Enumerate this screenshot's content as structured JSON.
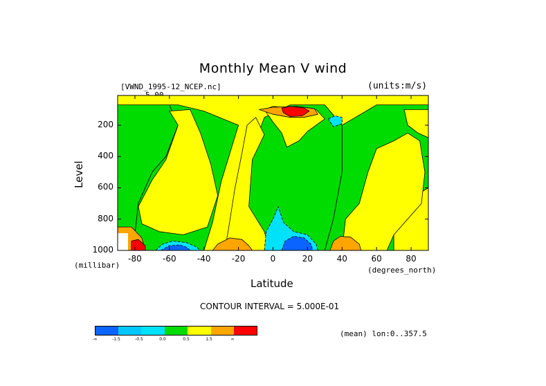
{
  "chart_data": {
    "type": "heatmap",
    "title": "Monthly Mean V wind",
    "dataset_label": "[VWND_1995-12_NCEP.nc]",
    "units_label": "(units:m/s)",
    "xlabel": "Latitude",
    "x_unit_label": "(degrees_north)",
    "ylabel": "Level",
    "y_unit_label": "(millibar)",
    "xlim": [
      -90,
      90
    ],
    "ylim": [
      1000,
      10
    ],
    "x_ticks": [
      -80,
      -60,
      -40,
      -20,
      0,
      20,
      40,
      60,
      80
    ],
    "y_ticks": [
      200,
      400,
      600,
      800,
      1000
    ],
    "contour_interval_text": "CONTOUR INTERVAL = 5.000E-01",
    "top_label": "5.00",
    "footnote": "(mean) lon:0..357.5",
    "colorbar": {
      "colors": [
        "#0a64ff",
        "#00c8ff",
        "#00e1fa",
        "#00dc00",
        "#ffff00",
        "#ffa500",
        "#ff0000"
      ],
      "labels": [
        "-∞",
        "-1.5",
        "-0.5",
        "0.0",
        "0.5",
        "1.5",
        "∞"
      ]
    },
    "regions": [
      {
        "name": "green-west-band",
        "level": 0.0,
        "points": [
          [
            -90,
            1000
          ],
          [
            -90,
            70
          ],
          [
            -60,
            70
          ],
          [
            -55,
            200
          ],
          [
            -62,
            400
          ],
          [
            -70,
            500
          ],
          [
            -78,
            700
          ],
          [
            -80,
            900
          ],
          [
            -80,
            1000
          ]
        ]
      },
      {
        "name": "green-central",
        "level": 0.0,
        "points": [
          [
            -40,
            1000
          ],
          [
            -35,
            820
          ],
          [
            -30,
            560
          ],
          [
            -25,
            380
          ],
          [
            -20,
            200
          ],
          [
            -40,
            110
          ],
          [
            -55,
            70
          ],
          [
            -60,
            70
          ],
          [
            -55,
            200
          ],
          [
            -62,
            400
          ],
          [
            -70,
            500
          ],
          [
            -78,
            700
          ],
          [
            -80,
            900
          ],
          [
            -80,
            1000
          ]
        ]
      },
      {
        "name": "green-tropics",
        "level": 0.0,
        "points": [
          [
            -20,
            1000
          ],
          [
            -15,
            600
          ],
          [
            -10,
            300
          ],
          [
            -5,
            150
          ],
          [
            10,
            70
          ],
          [
            30,
            70
          ],
          [
            40,
            200
          ],
          [
            40,
            500
          ],
          [
            35,
            800
          ],
          [
            30,
            1000
          ]
        ]
      },
      {
        "name": "green-north",
        "level": 0.0,
        "points": [
          [
            30,
            1000
          ],
          [
            35,
            800
          ],
          [
            40,
            500
          ],
          [
            40,
            200
          ],
          [
            60,
            70
          ],
          [
            90,
            70
          ],
          [
            90,
            600
          ],
          [
            75,
            700
          ],
          [
            70,
            900
          ],
          [
            70,
            1000
          ]
        ]
      },
      {
        "name": "yellow-west",
        "level": 0.5,
        "points": [
          [
            -78,
            720
          ],
          [
            -70,
            550
          ],
          [
            -62,
            420
          ],
          [
            -55,
            200
          ],
          [
            -60,
            110
          ],
          [
            -48,
            100
          ],
          [
            -42,
            250
          ],
          [
            -36,
            450
          ],
          [
            -32,
            650
          ],
          [
            -38,
            850
          ],
          [
            -52,
            900
          ],
          [
            -66,
            880
          ],
          [
            -76,
            830
          ]
        ]
      },
      {
        "name": "yellow-central",
        "level": 0.5,
        "points": [
          [
            -28,
            1000
          ],
          [
            -26,
            880
          ],
          [
            -22,
            600
          ],
          [
            -18,
            380
          ],
          [
            -15,
            200
          ],
          [
            -10,
            150
          ],
          [
            -5,
            260
          ],
          [
            -12,
            420
          ],
          [
            -14,
            720
          ],
          [
            -5,
            880
          ],
          [
            -2,
            1000
          ]
        ]
      },
      {
        "name": "yellow-north",
        "level": 0.5,
        "points": [
          [
            40,
            1000
          ],
          [
            42,
            800
          ],
          [
            50,
            700
          ],
          [
            55,
            500
          ],
          [
            60,
            350
          ],
          [
            70,
            300
          ],
          [
            78,
            250
          ],
          [
            85,
            300
          ],
          [
            88,
            500
          ],
          [
            86,
            700
          ],
          [
            78,
            800
          ],
          [
            70,
            900
          ],
          [
            66,
            1000
          ]
        ]
      },
      {
        "name": "yellow-top",
        "level": 0.5,
        "points": [
          [
            -5,
            100
          ],
          [
            0,
            80
          ],
          [
            10,
            90
          ],
          [
            25,
            100
          ],
          [
            30,
            160
          ],
          [
            20,
            240
          ],
          [
            15,
            300
          ],
          [
            8,
            340
          ],
          [
            5,
            250
          ],
          [
            0,
            180
          ]
        ]
      },
      {
        "name": "yellow-east-edge",
        "level": 0.5,
        "points": [
          [
            76,
            100
          ],
          [
            90,
            100
          ],
          [
            90,
            280
          ],
          [
            84,
            250
          ],
          [
            78,
            200
          ]
        ]
      },
      {
        "name": "orange-bottom-central",
        "level": 1.5,
        "points": [
          [
            -35,
            1000
          ],
          [
            -32,
            960
          ],
          [
            -25,
            920
          ],
          [
            -18,
            930
          ],
          [
            -14,
            970
          ],
          [
            -12,
            1000
          ]
        ]
      },
      {
        "name": "orange-bottom-north",
        "level": 1.5,
        "points": [
          [
            33,
            1000
          ],
          [
            35,
            940
          ],
          [
            39,
            910
          ],
          [
            45,
            915
          ],
          [
            50,
            960
          ],
          [
            51,
            1000
          ]
        ]
      },
      {
        "name": "orange-top",
        "level": 1.5,
        "points": [
          [
            -8,
            100
          ],
          [
            0,
            85
          ],
          [
            14,
            80
          ],
          [
            24,
            95
          ],
          [
            26,
            130
          ],
          [
            18,
            150
          ],
          [
            10,
            150
          ],
          [
            0,
            130
          ]
        ]
      },
      {
        "name": "orange-west-edge",
        "level": 1.5,
        "points": [
          [
            -90,
            850
          ],
          [
            -82,
            850
          ],
          [
            -76,
            920
          ],
          [
            -74,
            1000
          ],
          [
            -90,
            1000
          ]
        ]
      },
      {
        "name": "red-top",
        "level": 2.0,
        "points": [
          [
            5,
            90
          ],
          [
            10,
            80
          ],
          [
            18,
            90
          ],
          [
            21,
            110
          ],
          [
            17,
            140
          ],
          [
            10,
            145
          ],
          [
            6,
            120
          ]
        ]
      },
      {
        "name": "red-west-bottom",
        "level": 2.0,
        "points": [
          [
            -82,
            940
          ],
          [
            -78,
            930
          ],
          [
            -74,
            970
          ],
          [
            -74,
            1000
          ],
          [
            -82,
            1000
          ]
        ]
      },
      {
        "name": "cyan-tropics",
        "level": -0.5,
        "points": [
          [
            -5,
            1000
          ],
          [
            -4,
            880
          ],
          [
            0,
            800
          ],
          [
            3,
            720
          ],
          [
            6,
            820
          ],
          [
            12,
            880
          ],
          [
            20,
            900
          ],
          [
            25,
            960
          ],
          [
            26,
            1000
          ]
        ]
      },
      {
        "name": "cyan-south",
        "level": -0.5,
        "points": [
          [
            -68,
            1000
          ],
          [
            -64,
            960
          ],
          [
            -58,
            940
          ],
          [
            -50,
            950
          ],
          [
            -44,
            980
          ],
          [
            -42,
            1000
          ]
        ]
      },
      {
        "name": "cyan-top-north",
        "level": -0.5,
        "points": [
          [
            32,
            160
          ],
          [
            36,
            140
          ],
          [
            40,
            150
          ],
          [
            40,
            190
          ],
          [
            35,
            210
          ]
        ]
      },
      {
        "name": "blue-tropics",
        "level": -1.5,
        "points": [
          [
            5,
            1000
          ],
          [
            7,
            940
          ],
          [
            12,
            910
          ],
          [
            18,
            920
          ],
          [
            22,
            960
          ],
          [
            23,
            1000
          ]
        ]
      },
      {
        "name": "blue-south",
        "level": -1.5,
        "points": [
          [
            -65,
            1000
          ],
          [
            -60,
            970
          ],
          [
            -54,
            965
          ],
          [
            -50,
            980
          ],
          [
            -48,
            1000
          ]
        ]
      },
      {
        "name": "white-missing",
        "level": null,
        "points": [
          [
            -90,
            890
          ],
          [
            -84,
            890
          ],
          [
            -84,
            1000
          ],
          [
            -90,
            1000
          ]
        ]
      }
    ]
  }
}
